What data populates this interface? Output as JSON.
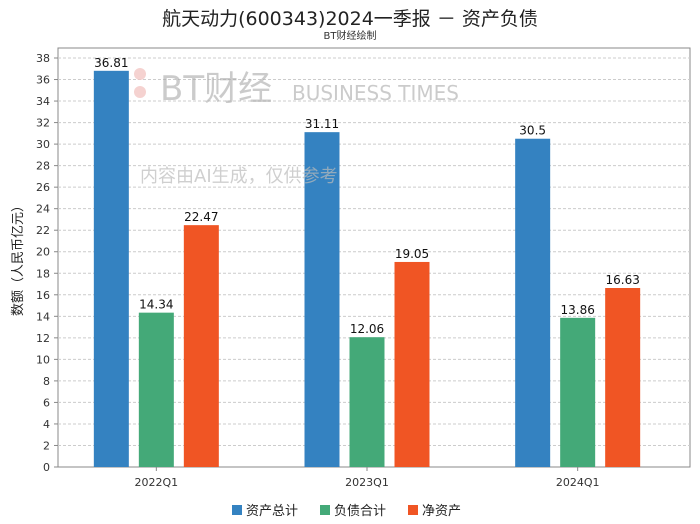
{
  "title": "航天动力(600343)2024一季报 － 资产负债",
  "subtitle": "BT财经绘制",
  "watermark": {
    "brand": "BT财经",
    "brand_en": "BUSINESS TIMES",
    "note": "内容由AI生成，仅供参考"
  },
  "chart_data": {
    "type": "bar",
    "title": "航天动力(600343)2024一季报 － 资产负债",
    "xlabel": "",
    "ylabel": "数额（人民币亿元）",
    "ylim": [
      0,
      38
    ],
    "yticks": [
      0,
      2,
      4,
      6,
      8,
      10,
      12,
      14,
      16,
      18,
      20,
      22,
      24,
      26,
      28,
      30,
      32,
      34,
      36,
      38
    ],
    "grid": true,
    "legend": "bottom",
    "categories": [
      "2022Q1",
      "2023Q1",
      "2024Q1"
    ],
    "series": [
      {
        "name": "资产总计",
        "color": "#3482c1",
        "values": [
          36.81,
          31.11,
          30.5
        ],
        "labels": [
          "36.81",
          "31.11",
          "30.5"
        ]
      },
      {
        "name": "负债合计",
        "color": "#44a978",
        "values": [
          14.34,
          12.06,
          13.86
        ],
        "labels": [
          "14.34",
          "12.06",
          "13.86"
        ]
      },
      {
        "name": "净资产",
        "color": "#f05524",
        "values": [
          22.47,
          19.05,
          16.63
        ],
        "labels": [
          "22.47",
          "19.05",
          "16.63"
        ]
      }
    ]
  }
}
